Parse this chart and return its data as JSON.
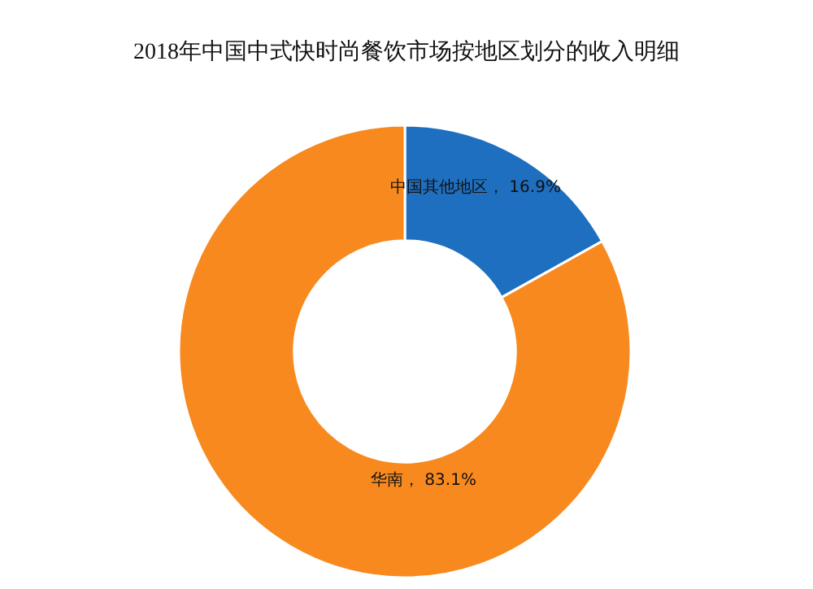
{
  "chart_data": {
    "type": "donut",
    "title": "2018年中国中式快时尚餐饮市场按地区划分的收入明细",
    "categories": [
      "中国其他地区",
      "华南"
    ],
    "values": [
      16.9,
      83.1
    ],
    "colors": [
      "#1f6fc0",
      "#f7891f"
    ],
    "value_labels": [
      "16.9%",
      "83.1%"
    ]
  }
}
